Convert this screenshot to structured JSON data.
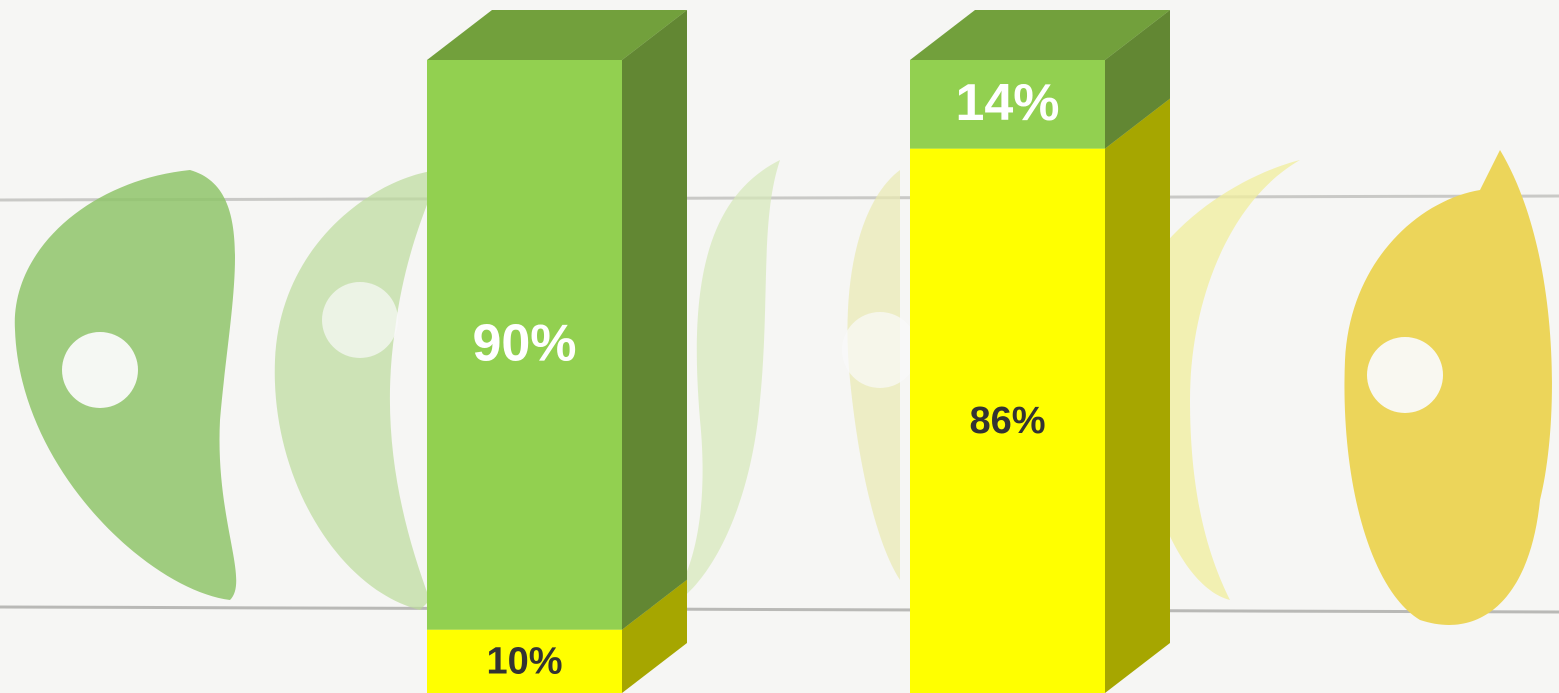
{
  "chart_data": {
    "type": "bar",
    "stacked": true,
    "categories": [
      null,
      null
    ],
    "ylim": [
      0,
      100
    ],
    "series": [
      {
        "color": "#ffff00",
        "side_color": "#a6a600",
        "top_color": "#cccc00",
        "label_color": "#333333",
        "values": [
          10,
          86
        ],
        "value_labels": [
          "10%",
          "86%"
        ]
      },
      {
        "color": "#92d050",
        "side_color": "#628733",
        "top_color": "#72a03c",
        "label_color": "#ffffff",
        "values": [
          90,
          14
        ],
        "value_labels": [
          "90%",
          "14%"
        ]
      }
    ]
  }
}
